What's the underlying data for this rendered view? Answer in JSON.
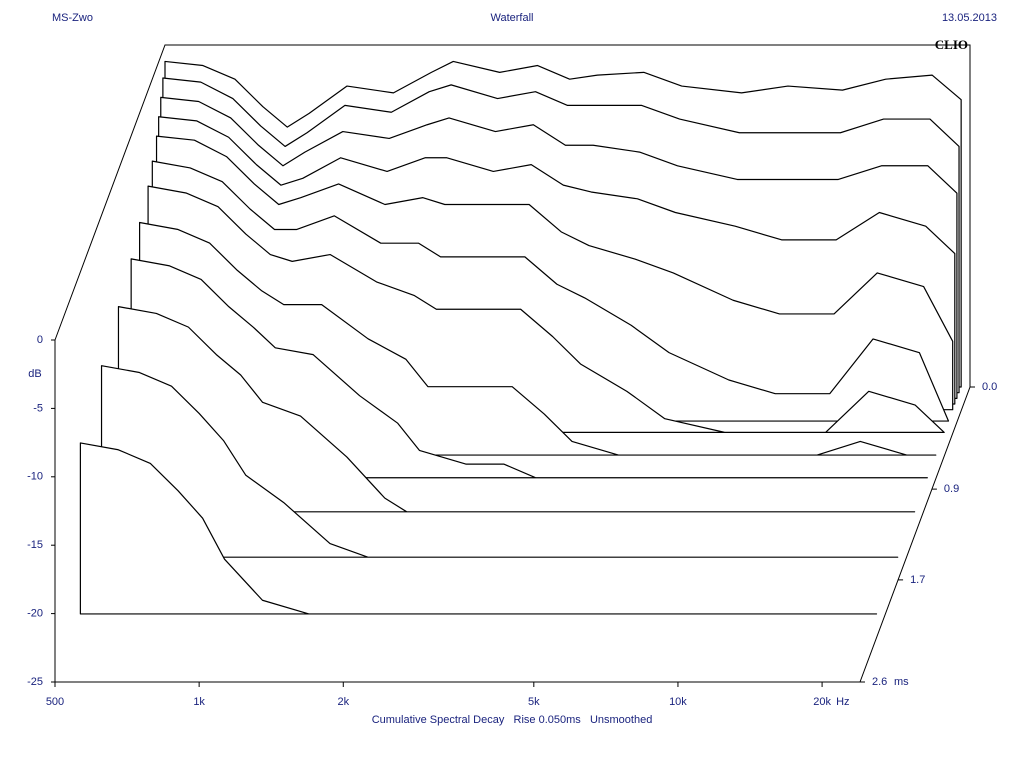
{
  "chart_data": {
    "type": "waterfall",
    "left_header": "MS-Zwo",
    "title": "Waterfall",
    "date": "13.05.2013",
    "brand": "CLIO",
    "ylabel": "dB",
    "xunit": "Hz",
    "zunit": "ms",
    "footer": "Cumulative Spectral Decay   Rise 0.050ms   Unsmoothed",
    "log_x": true,
    "xlim": [
      500,
      24000
    ],
    "xticks": [
      500,
      {
        "value": 1000,
        "label": "1k"
      },
      {
        "value": 2000,
        "label": "2k"
      },
      {
        "value": 5000,
        "label": "5k"
      },
      {
        "value": 10000,
        "label": "10k"
      },
      {
        "value": 20000,
        "label": "20k"
      }
    ],
    "ylim": [
      -25,
      0
    ],
    "yticks": [
      0,
      -5,
      -10,
      -15,
      -20,
      -25
    ],
    "zlim": [
      0,
      2.6
    ],
    "zticks": [
      {
        "value": 0,
        "label": "0.0"
      },
      {
        "value": 0.9,
        "label": "0.9"
      },
      {
        "value": 1.7,
        "label": "1.7"
      },
      {
        "value": 2.6,
        "label": "2.6"
      }
    ],
    "color": "#000000",
    "x": [
      500,
      600,
      700,
      800,
      900,
      1000,
      1200,
      1500,
      1800,
      2000,
      2500,
      3000,
      3500,
      4000,
      5000,
      6000,
      8000,
      10000,
      13000,
      16000,
      20000,
      23000
    ],
    "z": [
      0,
      0.05,
      0.1,
      0.15,
      0.2,
      0.3,
      0.4,
      0.6,
      0.8,
      1.1,
      1.5,
      2.0
    ],
    "series": [
      {
        "values": [
          -1.2,
          -1.5,
          -2.5,
          -4.5,
          -6,
          -5,
          -3,
          -3.5,
          -2,
          -1.2,
          -2,
          -1.5,
          -2.5,
          -2.2,
          -2,
          -3,
          -3.5,
          -3,
          -3.3,
          -2.5,
          -2.2,
          -4
        ]
      },
      {
        "values": [
          -2,
          -2.3,
          -3.5,
          -5.5,
          -7,
          -6,
          -4,
          -4.5,
          -3,
          -2.5,
          -3.5,
          -3,
          -4,
          -4,
          -4,
          -5,
          -6,
          -6,
          -6,
          -5,
          -5,
          -7
        ]
      },
      {
        "values": [
          -3,
          -3.3,
          -4.5,
          -6.5,
          -8,
          -7,
          -5.5,
          -6,
          -5,
          -4.5,
          -5.5,
          -5,
          -6.5,
          -6.5,
          -7,
          -8,
          -9,
          -9,
          -9,
          -8,
          -8,
          -10
        ]
      },
      {
        "values": [
          -4,
          -4.3,
          -5.5,
          -7.5,
          -9,
          -8.5,
          -7,
          -8,
          -7,
          -7,
          -8,
          -7.5,
          -9,
          -9.5,
          -10,
          -11,
          -12,
          -13,
          -13,
          -11,
          -12,
          -14
        ]
      },
      {
        "values": [
          -5,
          -5.3,
          -6.5,
          -8.5,
          -10,
          -9.5,
          -8.5,
          -10,
          -9.5,
          -10,
          -10,
          -10,
          -12,
          -13,
          -14,
          -15,
          -17,
          -18,
          -18,
          -15,
          -16,
          -20
        ]
      },
      {
        "values": [
          -6,
          -6.5,
          -7.5,
          -9.5,
          -11,
          -11,
          -10,
          -12,
          -12,
          -13,
          -13,
          -13,
          -15,
          -16,
          -18,
          -20,
          -22,
          -23,
          -23,
          -19,
          -20,
          -25
        ]
      },
      {
        "values": [
          -7,
          -7.5,
          -8.5,
          -10.5,
          -12,
          -12.5,
          -12,
          -14,
          -15,
          -16,
          -16,
          -16,
          -18,
          -20,
          -22,
          -24,
          -25,
          -25,
          -25,
          -22,
          -23,
          -25
        ]
      },
      {
        "values": [
          -8,
          -8.5,
          -9.5,
          -11.5,
          -13,
          -14,
          -14,
          -16.5,
          -18,
          -20,
          -20,
          -20,
          -22,
          -24,
          -25,
          -25,
          -25,
          -25,
          -25,
          -24,
          -25,
          -25
        ]
      },
      {
        "values": [
          -9,
          -9.5,
          -10.5,
          -12.5,
          -14,
          -15.5,
          -16,
          -19,
          -21,
          -23,
          -24,
          -24,
          -25,
          -25,
          -25,
          -25,
          -25,
          -25,
          -25,
          -25,
          -25,
          -25
        ]
      },
      {
        "values": [
          -10,
          -10.5,
          -11.5,
          -13.5,
          -15,
          -17,
          -18,
          -21,
          -24,
          -25,
          -25,
          -25,
          -25,
          -25,
          -25,
          -25,
          -25,
          -25,
          -25,
          -25,
          -25,
          -25
        ]
      },
      {
        "values": [
          -11,
          -11.5,
          -12.5,
          -14.5,
          -16.5,
          -19,
          -21,
          -24,
          -25,
          -25,
          -25,
          -25,
          -25,
          -25,
          -25,
          -25,
          -25,
          -25,
          -25,
          -25,
          -25,
          -25
        ]
      },
      {
        "values": [
          -12.5,
          -13,
          -14,
          -16,
          -18,
          -21,
          -24,
          -25,
          -25,
          -25,
          -25,
          -25,
          -25,
          -25,
          -25,
          -25,
          -25,
          -25,
          -25,
          -25,
          -25,
          -25
        ]
      }
    ]
  }
}
